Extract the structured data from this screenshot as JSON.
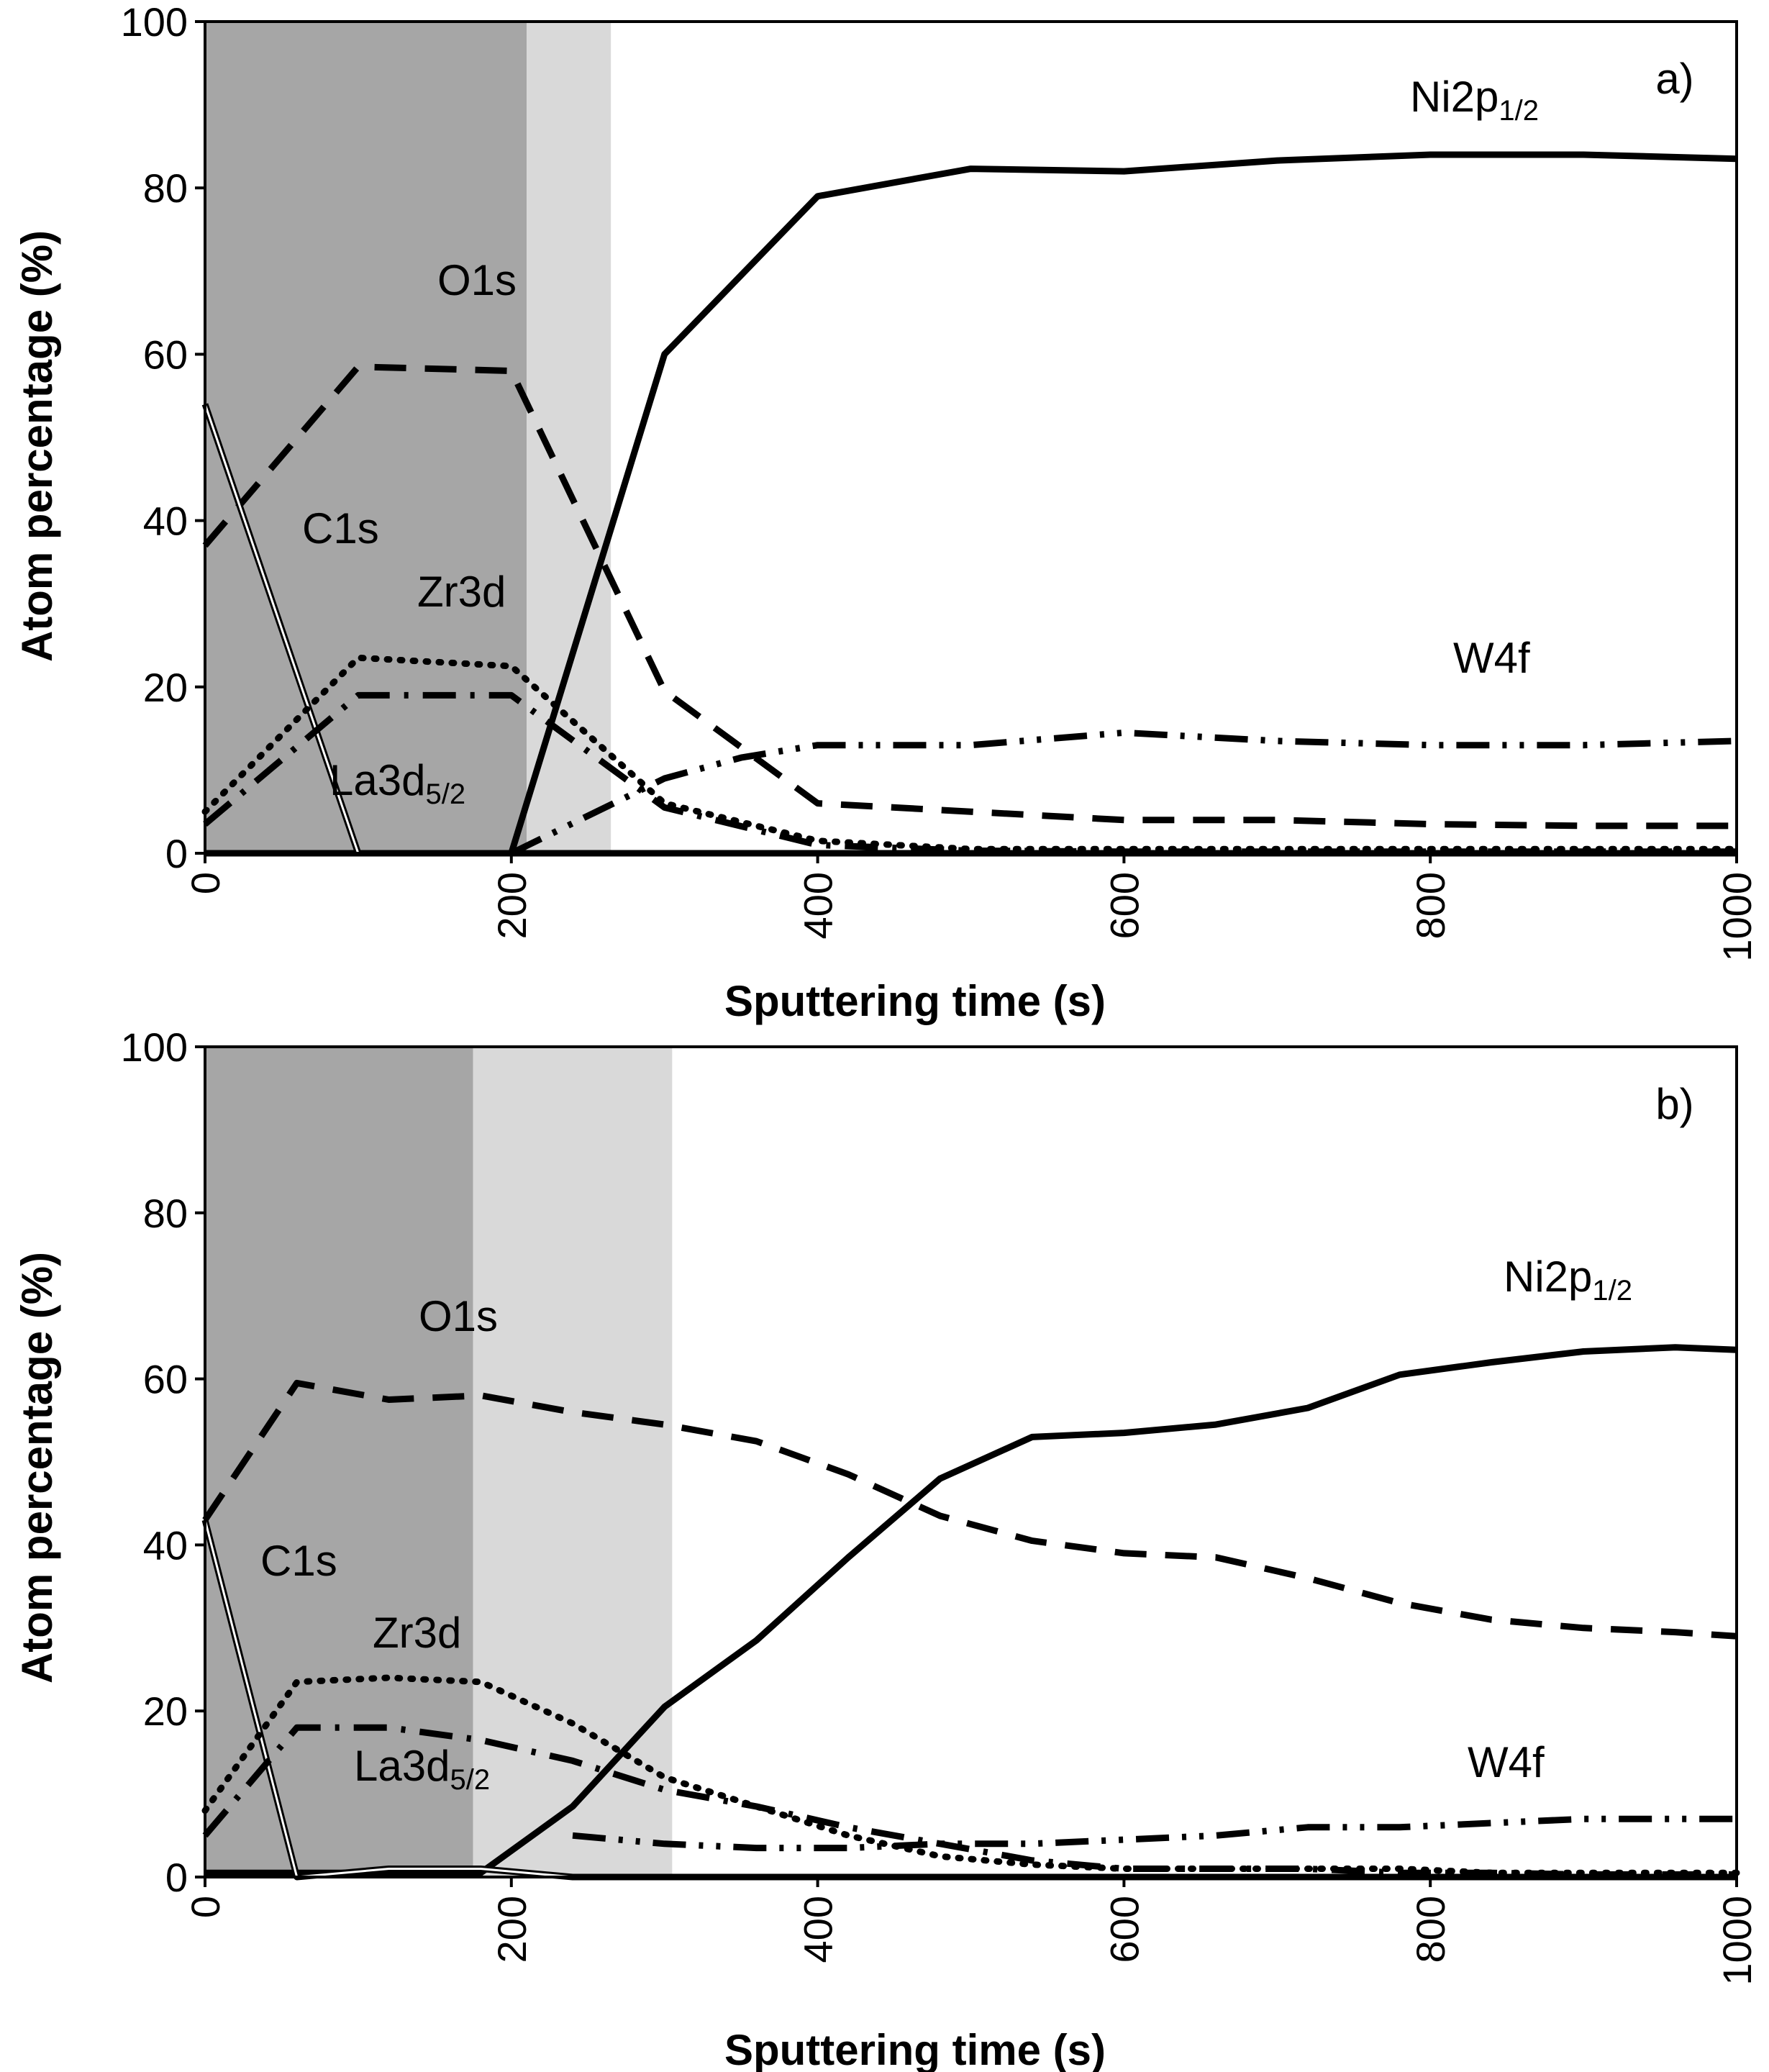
{
  "chart_data": [
    {
      "type": "line",
      "panel_tag": "a)",
      "xlabel": "Sputtering time  (s)",
      "ylabel": "Atom percentage (%)",
      "xlim": [
        0,
        1000
      ],
      "ylim": [
        0,
        100
      ],
      "x_ticks": [
        0,
        200,
        400,
        600,
        800,
        1000
      ],
      "x_tick_labels": [
        "0",
        "200",
        "400",
        "600",
        "800",
        "1000"
      ],
      "y_ticks": [
        0,
        20,
        40,
        60,
        80,
        100
      ],
      "y_tick_labels": [
        "0",
        "20",
        "40",
        "60",
        "80",
        "100"
      ],
      "shaded_regions": [
        {
          "x0": 0,
          "x1": 210,
          "color": "#a6a6a6"
        },
        {
          "x0": 210,
          "x1": 265,
          "color": "#d9d9d9"
        }
      ],
      "series": [
        {
          "name": "Ni2p1/2",
          "label_main": "Ni2p",
          "label_sub": "1/2",
          "style": "solid",
          "x": [
            0,
            200,
            300,
            400,
            500,
            600,
            700,
            800,
            900,
            1000
          ],
          "y": [
            0,
            0,
            60,
            79,
            82.3,
            82,
            83.3,
            84,
            84,
            83.5
          ]
        },
        {
          "name": "O1s",
          "label_main": "O1s",
          "label_sub": "",
          "style": "dashed",
          "x": [
            0,
            100,
            200,
            300,
            400,
            500,
            600,
            700,
            800,
            900,
            1000
          ],
          "y": [
            37,
            58.5,
            58,
            19.5,
            6,
            5,
            4,
            4,
            3.5,
            3.3,
            3.3
          ]
        },
        {
          "name": "C1s",
          "label_main": "C1s",
          "label_sub": "",
          "style": "double",
          "x": [
            0,
            100,
            200,
            1000
          ],
          "y": [
            54,
            0,
            0,
            0
          ]
        },
        {
          "name": "Zr3d",
          "label_main": "Zr3d",
          "label_sub": "",
          "style": "dotted",
          "x": [
            0,
            100,
            200,
            300,
            400,
            500,
            600,
            700,
            800,
            900,
            1000
          ],
          "y": [
            5,
            23.5,
            22.5,
            6,
            1.5,
            0.5,
            0.5,
            0.5,
            0.5,
            0.5,
            0.5
          ]
        },
        {
          "name": "La3d5/2",
          "label_main": "La3d",
          "label_sub": "5/2",
          "style": "dash-dot",
          "x": [
            0,
            100,
            200,
            300,
            400,
            500,
            600,
            1000
          ],
          "y": [
            3.5,
            19,
            19,
            5.5,
            1,
            0.3,
            0.2,
            0.2
          ]
        },
        {
          "name": "W4f",
          "label_main": "W4f",
          "label_sub": "",
          "style": "dash-dot-dot",
          "x": [
            200,
            300,
            350,
            400,
            500,
            600,
            700,
            800,
            900,
            1000
          ],
          "y": [
            0,
            9,
            11.5,
            13,
            13,
            14.5,
            13.5,
            13,
            13,
            13.5
          ]
        }
      ]
    },
    {
      "type": "line",
      "panel_tag": "b)",
      "xlabel": "Sputtering time  (s)",
      "ylabel": "Atom percentage (%)",
      "xlim": [
        0,
        1000
      ],
      "ylim": [
        0,
        100
      ],
      "x_ticks": [
        0,
        200,
        400,
        600,
        800,
        1000
      ],
      "x_tick_labels": [
        "0",
        "200",
        "400",
        "600",
        "800",
        "1000"
      ],
      "y_ticks": [
        0,
        20,
        40,
        60,
        80,
        100
      ],
      "y_tick_labels": [
        "0",
        "20",
        "40",
        "60",
        "80",
        "100"
      ],
      "shaded_regions": [
        {
          "x0": 0,
          "x1": 175,
          "color": "#a6a6a6"
        },
        {
          "x0": 175,
          "x1": 305,
          "color": "#d9d9d9"
        }
      ],
      "series": [
        {
          "name": "Ni2p1/2",
          "label_main": "Ni2p",
          "label_sub": "1/2",
          "style": "solid",
          "x": [
            0,
            180,
            240,
            300,
            360,
            420,
            480,
            540,
            600,
            660,
            720,
            780,
            840,
            900,
            960,
            1000
          ],
          "y": [
            0.5,
            0.5,
            8.5,
            20.5,
            28.5,
            38.5,
            48,
            53,
            53.5,
            54.5,
            56.5,
            60.5,
            62,
            63.3,
            63.8,
            63.5
          ]
        },
        {
          "name": "O1s",
          "label_main": "O1s",
          "label_sub": "",
          "style": "dashed",
          "x": [
            0,
            60,
            120,
            180,
            240,
            300,
            360,
            420,
            480,
            540,
            600,
            660,
            720,
            780,
            840,
            900,
            960,
            1000
          ],
          "y": [
            43,
            59.5,
            57.5,
            58,
            56,
            54.5,
            52.5,
            48.5,
            43.5,
            40.5,
            39,
            38.5,
            36,
            33,
            31,
            30,
            29.5,
            29
          ]
        },
        {
          "name": "C1s",
          "label_main": "C1s",
          "label_sub": "",
          "style": "double",
          "x": [
            0,
            60,
            120,
            180,
            240,
            1000
          ],
          "y": [
            43,
            0,
            1,
            1,
            0,
            0
          ]
        },
        {
          "name": "Zr3d",
          "label_main": "Zr3d",
          "label_sub": "",
          "style": "dotted",
          "x": [
            0,
            60,
            120,
            180,
            240,
            300,
            360,
            420,
            480,
            540,
            600,
            660,
            720,
            780,
            840,
            900,
            960,
            1000
          ],
          "y": [
            8,
            23.5,
            24,
            23.5,
            18.5,
            12,
            8.5,
            5,
            2.5,
            1.5,
            1,
            1,
            1,
            1,
            0.5,
            0.5,
            0.5,
            0.5
          ]
        },
        {
          "name": "La3d5/2",
          "label_main": "La3d",
          "label_sub": "5/2",
          "style": "dash-dot",
          "x": [
            0,
            60,
            120,
            180,
            240,
            300,
            360,
            420,
            480,
            540,
            600,
            660,
            720,
            780,
            840,
            900,
            960,
            1000
          ],
          "y": [
            5,
            18,
            18,
            16.5,
            14,
            10.5,
            8.5,
            6,
            4,
            2,
            1,
            1,
            1,
            0.5,
            0.5,
            0.3,
            0.3,
            0.3
          ]
        },
        {
          "name": "W4f",
          "label_main": "W4f",
          "label_sub": "",
          "style": "dash-dot-dot",
          "x": [
            240,
            300,
            360,
            420,
            480,
            540,
            600,
            660,
            720,
            780,
            840,
            900,
            960,
            1000
          ],
          "y": [
            5,
            4,
            3.5,
            3.5,
            4,
            4,
            4.5,
            5,
            6,
            6,
            6.5,
            7,
            7,
            7
          ]
        }
      ]
    }
  ]
}
